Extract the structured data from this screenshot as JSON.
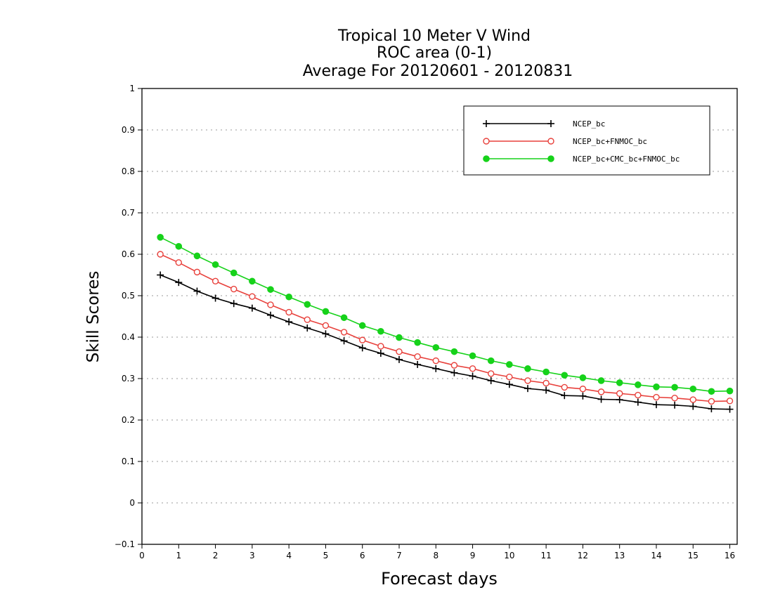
{
  "chart_data": {
    "type": "line",
    "title_lines": [
      "Tropical 10 Meter V Wind",
      "ROC area (0-1)",
      "Average For 20120601 - 20120831"
    ],
    "xlabel": "Forecast days",
    "ylabel": "Skill Scores",
    "xlim": [
      0,
      16.2
    ],
    "ylim": [
      -0.1,
      1
    ],
    "x_ticks": [
      0,
      1,
      2,
      3,
      4,
      5,
      6,
      7,
      8,
      9,
      10,
      11,
      12,
      13,
      14,
      15,
      16
    ],
    "y_ticks": [
      -0.1,
      0,
      0.1,
      0.2,
      0.3,
      0.4,
      0.5,
      0.6,
      0.7,
      0.8,
      0.9,
      1
    ],
    "y_tick_labels": [
      "−0.1",
      "0",
      "0.1",
      "0.2",
      "0.3",
      "0.4",
      "0.5",
      "0.6",
      "0.7",
      "0.8",
      "0.9",
      "1"
    ],
    "grid": "horizontal dotted",
    "legend_position": "top-right",
    "x": [
      0.5,
      1,
      1.5,
      2,
      2.5,
      3,
      3.5,
      4,
      4.5,
      5,
      5.5,
      6,
      6.5,
      7,
      7.5,
      8,
      8.5,
      9,
      9.5,
      10,
      10.5,
      11,
      11.5,
      12,
      12.5,
      13,
      13.5,
      14,
      14.5,
      15,
      15.5,
      16
    ],
    "series": [
      {
        "name": "NCEP_bc",
        "color": "#000000",
        "marker": "plus",
        "values": [
          0.55,
          0.532,
          0.511,
          0.494,
          0.481,
          0.47,
          0.453,
          0.437,
          0.422,
          0.408,
          0.391,
          0.374,
          0.361,
          0.346,
          0.334,
          0.324,
          0.314,
          0.306,
          0.295,
          0.286,
          0.276,
          0.272,
          0.259,
          0.258,
          0.25,
          0.249,
          0.243,
          0.237,
          0.236,
          0.233,
          0.227,
          0.226
        ]
      },
      {
        "name": "NCEP_bc+FNMOC_bc",
        "color": "#e8413c",
        "marker": "open-circle",
        "values": [
          0.6,
          0.58,
          0.557,
          0.535,
          0.516,
          0.498,
          0.478,
          0.46,
          0.442,
          0.428,
          0.412,
          0.393,
          0.378,
          0.365,
          0.353,
          0.343,
          0.332,
          0.324,
          0.312,
          0.304,
          0.295,
          0.289,
          0.279,
          0.275,
          0.268,
          0.264,
          0.26,
          0.255,
          0.253,
          0.249,
          0.245,
          0.246
        ]
      },
      {
        "name": "NCEP_bc+CMC_bc+FNMOC_bc",
        "color": "#16d21a",
        "marker": "filled-circle",
        "values": [
          0.641,
          0.619,
          0.596,
          0.575,
          0.555,
          0.535,
          0.515,
          0.497,
          0.479,
          0.462,
          0.447,
          0.428,
          0.414,
          0.399,
          0.387,
          0.375,
          0.365,
          0.355,
          0.343,
          0.334,
          0.324,
          0.316,
          0.308,
          0.302,
          0.295,
          0.29,
          0.285,
          0.28,
          0.279,
          0.275,
          0.269,
          0.27
        ]
      }
    ]
  }
}
